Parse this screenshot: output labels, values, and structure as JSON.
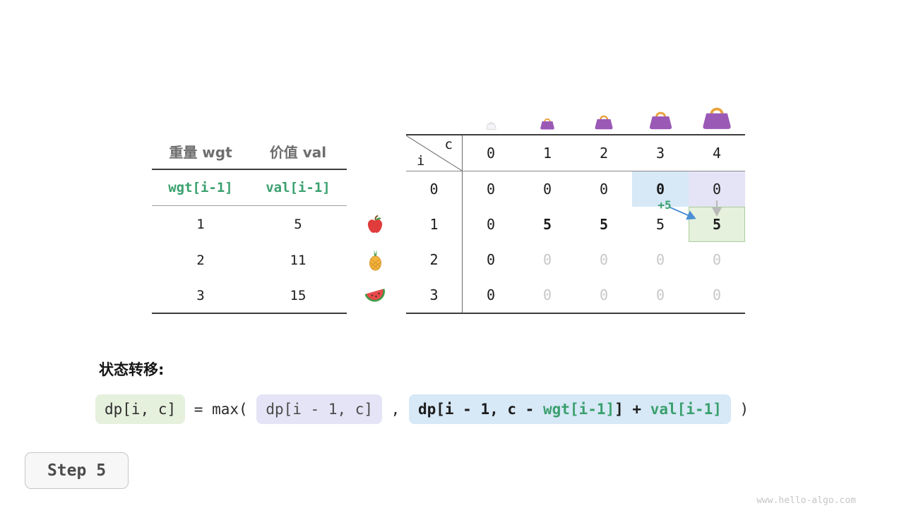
{
  "colors": {
    "accent_green": "#3AA06E",
    "hl_blue": "#D7E8F6",
    "hl_lavender": "#E4E4F6",
    "hl_green": "#E5F0DD",
    "hl_green_border": "#A9CE9C",
    "dim_text": "#C7C7C7",
    "arrow_blue": "#4A8FD3",
    "arrow_gray": "#B9B9B9"
  },
  "item_table": {
    "headers": [
      "重量 wgt",
      "价值 val"
    ],
    "index_row": [
      "wgt[i-1]",
      "val[i-1]"
    ],
    "rows": [
      [
        "1",
        "5"
      ],
      [
        "2",
        "11"
      ],
      [
        "3",
        "15"
      ]
    ]
  },
  "fruits": [
    {
      "name": "apple-icon",
      "kind": "apple"
    },
    {
      "name": "pineapple-icon",
      "kind": "pineapple"
    },
    {
      "name": "watermelon-icon",
      "kind": "watermelon"
    }
  ],
  "dp_table": {
    "corner_col": "c",
    "corner_row": "i",
    "col_headers": [
      "0",
      "1",
      "2",
      "3",
      "4"
    ],
    "bags": [
      {
        "name": "bag-capacity-0-icon",
        "variant": "empty"
      },
      {
        "name": "bag-capacity-1-icon",
        "variant": "filled"
      },
      {
        "name": "bag-capacity-2-icon",
        "variant": "filled"
      },
      {
        "name": "bag-capacity-3-icon",
        "variant": "filled"
      },
      {
        "name": "bag-capacity-4-icon",
        "variant": "filled"
      }
    ],
    "rows": [
      {
        "header": "0",
        "cells": [
          {
            "v": "0"
          },
          {
            "v": "0"
          },
          {
            "v": "0"
          },
          {
            "v": "0",
            "style": "bold",
            "hl": "blue"
          },
          {
            "v": "0",
            "hl": "lavender"
          }
        ]
      },
      {
        "header": "1",
        "cells": [
          {
            "v": "0"
          },
          {
            "v": "5",
            "style": "bold"
          },
          {
            "v": "5",
            "style": "bold"
          },
          {
            "v": "5"
          },
          {
            "v": "5",
            "style": "bold",
            "hl": "green"
          }
        ]
      },
      {
        "header": "2",
        "cells": [
          {
            "v": "0"
          },
          {
            "v": "0",
            "style": "dim"
          },
          {
            "v": "0",
            "style": "dim"
          },
          {
            "v": "0",
            "style": "dim"
          },
          {
            "v": "0",
            "style": "dim"
          }
        ]
      },
      {
        "header": "3",
        "cells": [
          {
            "v": "0"
          },
          {
            "v": "0",
            "style": "dim"
          },
          {
            "v": "0",
            "style": "dim"
          },
          {
            "v": "0",
            "style": "dim"
          },
          {
            "v": "0",
            "style": "dim"
          }
        ]
      }
    ],
    "annotation": "+5"
  },
  "transition": {
    "label": "状态转移:",
    "tokens": [
      {
        "name": "formula-lhs",
        "box": "green",
        "text": "dp[i, c]"
      },
      {
        "name": "formula-equals-max",
        "text": " = max( "
      },
      {
        "name": "formula-option-keep",
        "box": "lavender",
        "text": "dp[i - 1, c]"
      },
      {
        "name": "formula-comma",
        "text": " , "
      },
      {
        "name": "formula-option-take",
        "box": "blue",
        "parts": [
          {
            "text": "dp[i - 1, c - ",
            "color": "dark"
          },
          {
            "text": "wgt[i-1]",
            "color": "green"
          },
          {
            "text": "] + ",
            "color": "dark"
          },
          {
            "text": "val[i-1]",
            "color": "green"
          }
        ]
      },
      {
        "name": "formula-close-paren",
        "text": " )"
      }
    ]
  },
  "step": {
    "label": "Step 5"
  },
  "watermark": "www.hello-algo.com"
}
